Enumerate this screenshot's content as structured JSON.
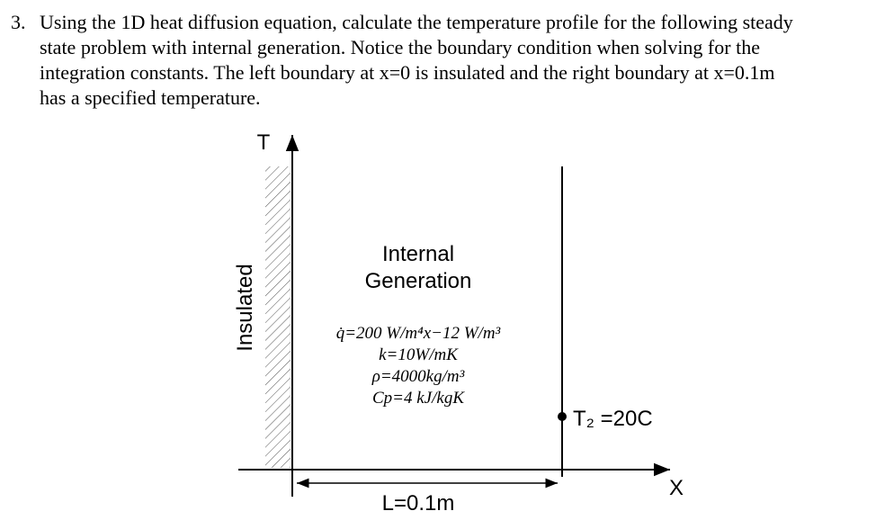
{
  "problem": {
    "number": "3.",
    "lines": [
      "Using the 1D heat diffusion equation, calculate the temperature profile for the following steady",
      "state problem with internal generation. Notice the boundary condition when solving for the",
      "integration constants. The left boundary at x=0 is insulated and the right boundary at x=0.1m",
      "has a specified temperature."
    ]
  },
  "diagram": {
    "axis_y_label": "T",
    "axis_x_label": "X",
    "left_label": "Insulated",
    "region_title": [
      "Internal",
      "Generation"
    ],
    "equations": [
      "q̇=200 W/m⁴x−12 W/m³",
      "k=10W/mK",
      "ρ=4000kg/m³",
      "Cp=4 kJ/kgK"
    ],
    "boundary_label": "T₂ =20C",
    "length_label": "L=0.1m"
  }
}
